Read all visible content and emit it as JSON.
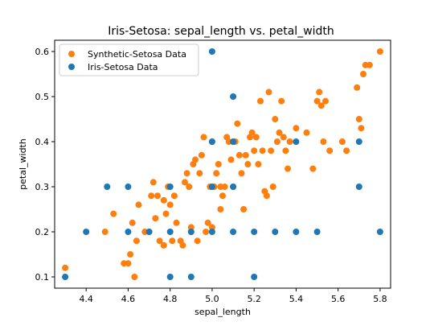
{
  "chart_data": {
    "type": "scatter",
    "title": "Iris-Setosa: sepal_length vs. petal_width",
    "xlabel": "sepal_length",
    "ylabel": "petal_width",
    "xlim": [
      4.25,
      5.85
    ],
    "ylim": [
      0.075,
      0.625
    ],
    "xticks": [
      4.4,
      4.6,
      4.8,
      5.0,
      5.2,
      5.4,
      5.6,
      5.8
    ],
    "xtick_labels": [
      "4.4",
      "4.6",
      "4.8",
      "5.0",
      "5.2",
      "5.4",
      "5.6",
      "5.8"
    ],
    "yticks": [
      0.1,
      0.2,
      0.3,
      0.4,
      0.5,
      0.6
    ],
    "ytick_labels": [
      "0.1",
      "0.2",
      "0.3",
      "0.4",
      "0.5",
      "0.6"
    ],
    "grid": false,
    "legend_position": "top-left",
    "series": [
      {
        "name": "Synthetic-Setosa Data",
        "color": "#ff7f0e",
        "points": [
          [
            4.3,
            0.12
          ],
          [
            4.49,
            0.2
          ],
          [
            4.53,
            0.24
          ],
          [
            4.58,
            0.13
          ],
          [
            4.6,
            0.13
          ],
          [
            4.61,
            0.15
          ],
          [
            4.62,
            0.22
          ],
          [
            4.63,
            0.1
          ],
          [
            4.64,
            0.18
          ],
          [
            4.65,
            0.26
          ],
          [
            4.68,
            0.2
          ],
          [
            4.7,
            0.2
          ],
          [
            4.71,
            0.28
          ],
          [
            4.72,
            0.31
          ],
          [
            4.73,
            0.23
          ],
          [
            4.74,
            0.28
          ],
          [
            4.75,
            0.18
          ],
          [
            4.77,
            0.17
          ],
          [
            4.77,
            0.27
          ],
          [
            4.78,
            0.24
          ],
          [
            4.79,
            0.3
          ],
          [
            4.8,
            0.26
          ],
          [
            4.81,
            0.18
          ],
          [
            4.82,
            0.28
          ],
          [
            4.83,
            0.22
          ],
          [
            4.85,
            0.18
          ],
          [
            4.86,
            0.17
          ],
          [
            4.87,
            0.31
          ],
          [
            4.88,
            0.33
          ],
          [
            4.89,
            0.3
          ],
          [
            4.9,
            0.21
          ],
          [
            4.9,
            0.2
          ],
          [
            4.91,
            0.35
          ],
          [
            4.92,
            0.36
          ],
          [
            4.93,
            0.18
          ],
          [
            4.94,
            0.33
          ],
          [
            4.95,
            0.37
          ],
          [
            4.96,
            0.41
          ],
          [
            4.97,
            0.2
          ],
          [
            4.98,
            0.22
          ],
          [
            4.99,
            0.3
          ],
          [
            5.0,
            0.4
          ],
          [
            5.0,
            0.21
          ],
          [
            5.01,
            0.3
          ],
          [
            5.02,
            0.33
          ],
          [
            5.03,
            0.35
          ],
          [
            5.04,
            0.3
          ],
          [
            5.04,
            0.25
          ],
          [
            5.05,
            0.28
          ],
          [
            5.06,
            0.3
          ],
          [
            5.07,
            0.41
          ],
          [
            5.08,
            0.4
          ],
          [
            5.09,
            0.36
          ],
          [
            5.1,
            0.3
          ],
          [
            5.11,
            0.4
          ],
          [
            5.12,
            0.44
          ],
          [
            5.13,
            0.37
          ],
          [
            5.14,
            0.33
          ],
          [
            5.15,
            0.25
          ],
          [
            5.16,
            0.37
          ],
          [
            5.17,
            0.35
          ],
          [
            5.18,
            0.41
          ],
          [
            5.19,
            0.42
          ],
          [
            5.2,
            0.38
          ],
          [
            5.21,
            0.41
          ],
          [
            5.22,
            0.35
          ],
          [
            5.23,
            0.49
          ],
          [
            5.24,
            0.38
          ],
          [
            5.25,
            0.29
          ],
          [
            5.26,
            0.28
          ],
          [
            5.27,
            0.51
          ],
          [
            5.28,
            0.38
          ],
          [
            5.29,
            0.3
          ],
          [
            5.3,
            0.45
          ],
          [
            5.31,
            0.4
          ],
          [
            5.32,
            0.42
          ],
          [
            5.33,
            0.49
          ],
          [
            5.34,
            0.41
          ],
          [
            5.35,
            0.38
          ],
          [
            5.36,
            0.34
          ],
          [
            5.37,
            0.4
          ],
          [
            5.4,
            0.43
          ],
          [
            5.45,
            0.42
          ],
          [
            5.48,
            0.34
          ],
          [
            5.5,
            0.49
          ],
          [
            5.51,
            0.51
          ],
          [
            5.52,
            0.48
          ],
          [
            5.53,
            0.4
          ],
          [
            5.54,
            0.49
          ],
          [
            5.56,
            0.38
          ],
          [
            5.62,
            0.4
          ],
          [
            5.64,
            0.38
          ],
          [
            5.69,
            0.52
          ],
          [
            5.7,
            0.45
          ],
          [
            5.71,
            0.43
          ],
          [
            5.72,
            0.55
          ],
          [
            5.73,
            0.57
          ],
          [
            5.75,
            0.57
          ],
          [
            5.8,
            0.6
          ]
        ]
      },
      {
        "name": "Iris-Setosa Data",
        "color": "#1f77b4",
        "points": [
          [
            4.3,
            0.1
          ],
          [
            4.4,
            0.2
          ],
          [
            4.5,
            0.3
          ],
          [
            4.6,
            0.3
          ],
          [
            4.6,
            0.2
          ],
          [
            4.7,
            0.2
          ],
          [
            4.8,
            0.3
          ],
          [
            4.8,
            0.2
          ],
          [
            4.8,
            0.1
          ],
          [
            4.9,
            0.2
          ],
          [
            4.9,
            0.1
          ],
          [
            5.0,
            0.6
          ],
          [
            5.0,
            0.4
          ],
          [
            5.0,
            0.3
          ],
          [
            5.0,
            0.2
          ],
          [
            5.1,
            0.5
          ],
          [
            5.1,
            0.4
          ],
          [
            5.1,
            0.3
          ],
          [
            5.1,
            0.2
          ],
          [
            5.2,
            0.2
          ],
          [
            5.2,
            0.1
          ],
          [
            5.3,
            0.2
          ],
          [
            5.4,
            0.4
          ],
          [
            5.4,
            0.2
          ],
          [
            5.5,
            0.2
          ],
          [
            5.7,
            0.4
          ],
          [
            5.7,
            0.3
          ],
          [
            5.8,
            0.2
          ]
        ]
      }
    ]
  }
}
